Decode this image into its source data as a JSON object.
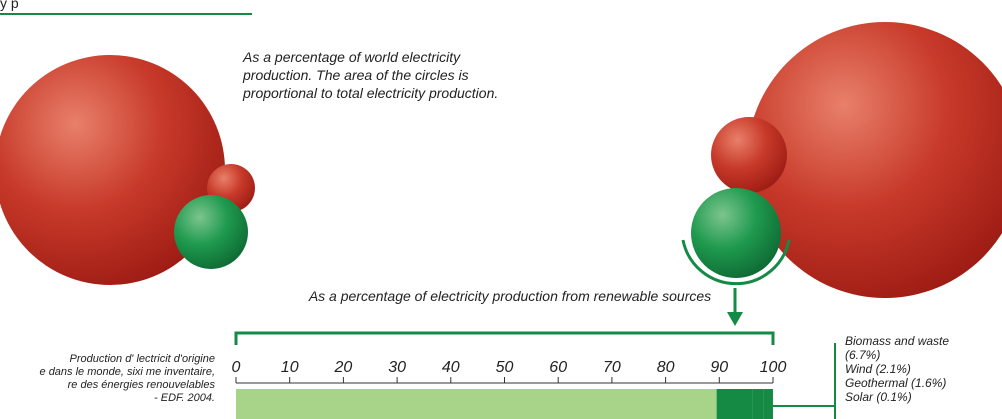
{
  "header_fragment": "y p",
  "note": "As a percentage of world electricity production. The area of the circles is proportional to total electricity production.",
  "source_lines": [
    "Production d' lectricit d'origine",
    "e dans le monde, sixi me inventaire,",
    "re des énergies renouvelables",
    "- EDF. 2004."
  ],
  "chart_data": {
    "type": "stacked-hbar",
    "axis_label": "As a percentage of electricity production from renewable sources",
    "xlim": [
      0,
      100
    ],
    "xticks": [
      0,
      10,
      20,
      30,
      40,
      50,
      60,
      70,
      80,
      90,
      100
    ],
    "series": [
      {
        "color": "#a8d48a",
        "values": [
          89.5
        ]
      },
      {
        "name": "Biomass and waste (6.7%)",
        "color": "#148a45",
        "values": [
          6.7
        ]
      },
      {
        "name": "Wind (2.1%)",
        "color": "#148a45",
        "values": [
          2.1
        ]
      },
      {
        "name": "Geothermal (1.6%)",
        "color": "#148a45",
        "values": [
          1.6
        ]
      },
      {
        "name": "Solar (0.1%)",
        "color": "#148a45",
        "values": [
          0.1
        ]
      }
    ]
  }
}
